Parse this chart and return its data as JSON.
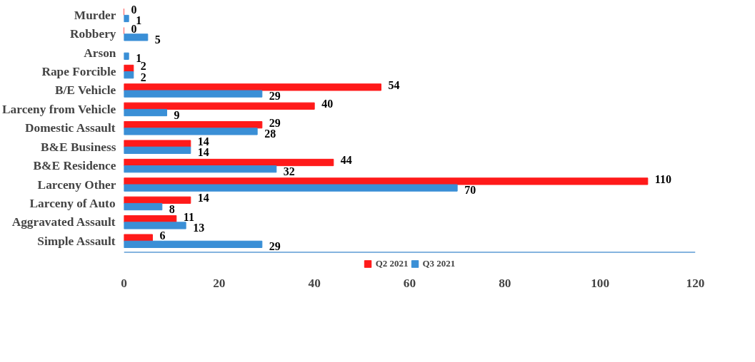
{
  "chart_data": {
    "type": "bar",
    "orientation": "horizontal",
    "categories": [
      "Murder",
      "Robbery",
      "Arson",
      "Rape Forcible",
      "B/E Vehicle",
      "Larceny from Vehicle",
      "Domestic Assault",
      "B&E Business",
      "B&E Residence",
      "Larceny Other",
      "Larceny of Auto",
      "Aggravated Assault",
      "Simple Assault"
    ],
    "series": [
      {
        "name": "Q2 2021",
        "color": "#ff1a1a",
        "values": [
          0,
          0,
          null,
          2,
          54,
          40,
          29,
          14,
          44,
          110,
          14,
          11,
          6
        ]
      },
      {
        "name": "Q3 2021",
        "color": "#3a8fd6",
        "values": [
          1,
          5,
          1,
          2,
          29,
          9,
          28,
          14,
          32,
          70,
          8,
          13,
          29
        ]
      }
    ],
    "xlim": [
      0,
      120
    ],
    "xticks": [
      0,
      20,
      40,
      60,
      80,
      100,
      120
    ],
    "grid": false,
    "legend": "bottom",
    "data_labels": true
  }
}
